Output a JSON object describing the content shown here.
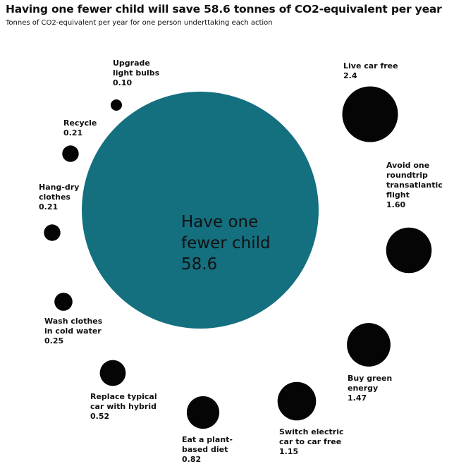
{
  "chart_data": {
    "type": "bubble",
    "title": "Having one fewer child will save 58.6 tonnes of CO2-equivalent per year",
    "subtitle": "Tonnes of CO2-equivalent per year for one person underttaking each action",
    "main": {
      "label": [
        "Have one",
        "fewer child"
      ],
      "value": "58.6"
    },
    "colors": {
      "main": "#146f7f",
      "bubble": "#050505"
    },
    "items": [
      {
        "label": [
          "Upgrade",
          "light bulbs"
        ],
        "value": "0.10"
      },
      {
        "label": [
          "Recycle"
        ],
        "value": "0.21"
      },
      {
        "label": [
          "Hang-dry",
          "clothes"
        ],
        "value": "0.21"
      },
      {
        "label": [
          "Wash clothes",
          "in cold water"
        ],
        "value": "0.25"
      },
      {
        "label": [
          "Replace typical",
          "car with hybrid"
        ],
        "value": "0.52"
      },
      {
        "label": [
          "Eat a plant-",
          "based diet"
        ],
        "value": "0.82"
      },
      {
        "label": [
          "Switch electric",
          "car to car free"
        ],
        "value": "1.15"
      },
      {
        "label": [
          "Buy green",
          "energy"
        ],
        "value": "1.47"
      },
      {
        "label": [
          "Avoid one",
          "roundtrip",
          "transatlantic",
          "flight"
        ],
        "value": "1.60"
      },
      {
        "label": [
          "Live car free"
        ],
        "value": "2.4"
      }
    ]
  }
}
